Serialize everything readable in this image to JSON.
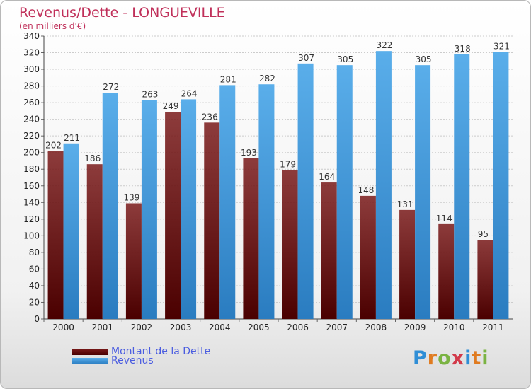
{
  "header": {
    "title": "Revenus/Dette - LONGUEVILLE",
    "subtitle": "(en milliers d'€)"
  },
  "colors": {
    "dette": "#7a1a1a",
    "revenus": "#3d94d8",
    "grid": "#cccccc",
    "axis_text": "#222222"
  },
  "chart_data": {
    "type": "bar",
    "title": "Revenus/Dette - LONGUEVILLE",
    "subtitle": "(en milliers d'€)",
    "categories": [
      "2000",
      "2001",
      "2002",
      "2003",
      "2004",
      "2005",
      "2006",
      "2007",
      "2008",
      "2009",
      "2010",
      "2011"
    ],
    "series": [
      {
        "name": "Montant de la Dette",
        "values": [
          202,
          186,
          139,
          249,
          236,
          193,
          179,
          164,
          148,
          131,
          114,
          95
        ]
      },
      {
        "name": "Revenus",
        "values": [
          211,
          272,
          263,
          264,
          281,
          282,
          307,
          305,
          322,
          305,
          318,
          321
        ]
      }
    ],
    "ylim": [
      0,
      340
    ],
    "yticks": [
      0,
      20,
      40,
      60,
      80,
      100,
      120,
      140,
      160,
      180,
      200,
      220,
      240,
      260,
      280,
      300,
      320,
      340
    ],
    "grid": true,
    "legend_position": "bottom-left"
  },
  "legend": {
    "dette_label": "Montant de la Dette",
    "revenus_label": "Revenus"
  },
  "logo": {
    "text": "Proxiti",
    "letters": [
      "P",
      "r",
      "o",
      "x",
      "i",
      "t",
      "i"
    ],
    "colors": [
      "#2f8ed6",
      "#e07b20",
      "#7ab342",
      "#d23a4a",
      "#2f8ed6",
      "#e07b20",
      "#7ab342"
    ]
  }
}
